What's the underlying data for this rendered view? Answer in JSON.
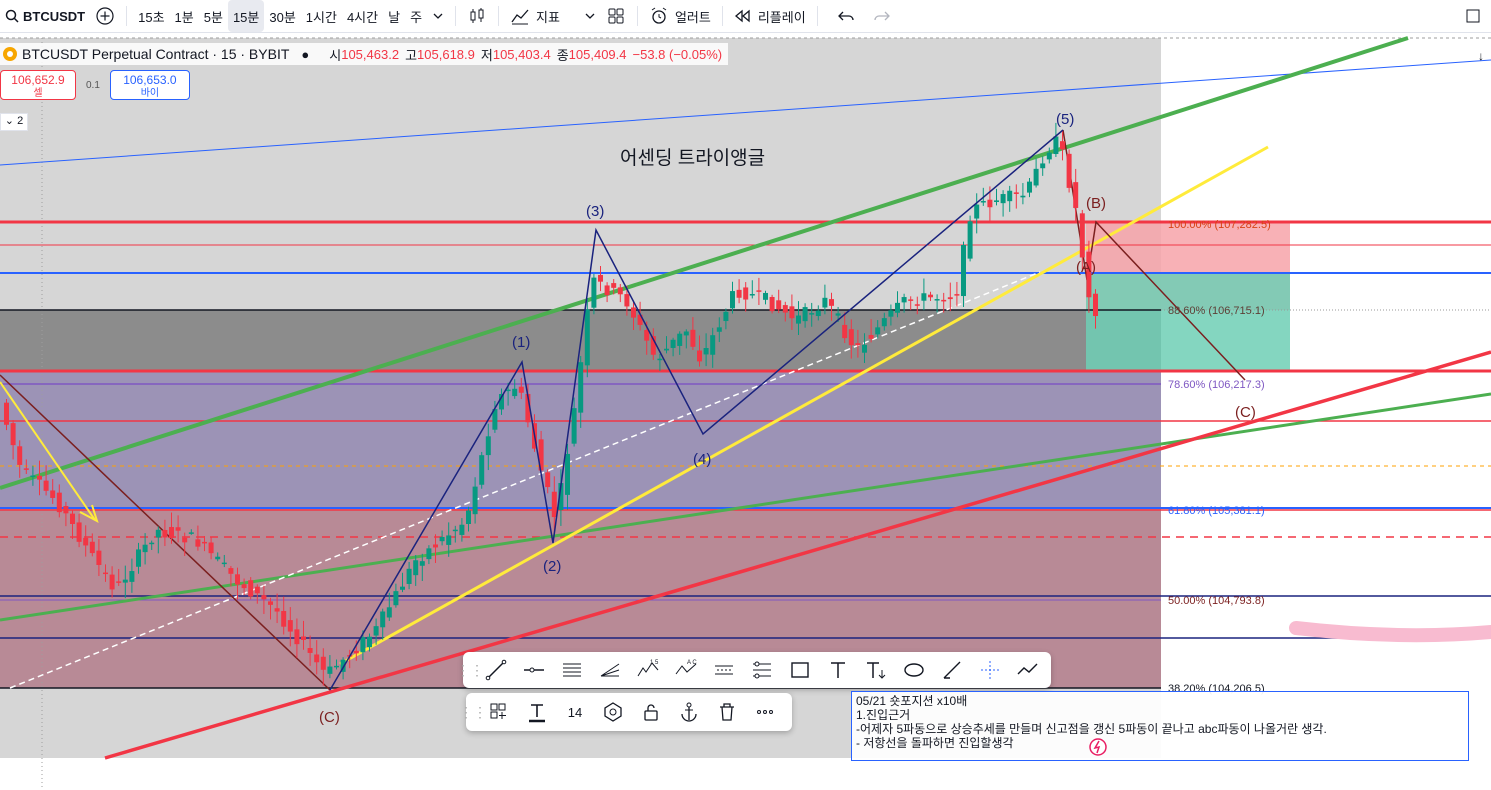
{
  "toolbar": {
    "symbol": "BTCUSDT",
    "intervals": [
      "15초",
      "1분",
      "5분",
      "15분",
      "30분",
      "1시간",
      "4시간",
      "날",
      "주"
    ],
    "active_interval": "15분",
    "indicators_label": "지표",
    "alert_label": "얼러트",
    "replay_label": "리플레이"
  },
  "legend": {
    "title": "BTCUSDT Perpetual Contract · 15 · BYBIT",
    "o_label": "시",
    "o": "105,463.2",
    "h_label": "고",
    "h": "105,618.9",
    "l_label": "저",
    "l": "105,403.4",
    "c_label": "종",
    "c": "105,409.4",
    "change": "−53.8 (−0.05%)"
  },
  "trade": {
    "sell_price": "106,652.9",
    "sell_label": "셀",
    "qty": "0.1",
    "buy_price": "106,653.0",
    "buy_label": "바이"
  },
  "collapse_label": "2",
  "chart": {
    "pattern_label": "어센딩 트라이앵글",
    "wave_labels": [
      "(1)",
      "(2)",
      "(3)",
      "(4)",
      "(5)",
      "(B)",
      "(C)",
      "(C)",
      "(A)"
    ],
    "fib_labels": [
      "100.00% (107,282.5)",
      "88.60% (106,715.1)",
      "78.60% (106,217.3)",
      "61.80% (105,381.1)",
      "50.00% (104,793.8)",
      "38.20% (104,206.5)"
    ],
    "colors": {
      "up": "#089981",
      "down": "#f23645",
      "green_line": "#4caf50",
      "yellow_line": "#ffeb3b",
      "wave_blue": "#1a237e",
      "red_line": "#f23645"
    }
  },
  "floatbar1": {
    "icons": [
      "trend-line-icon",
      "horizontal-ray-icon",
      "parallel-channel-icon",
      "pitchfork-icon",
      "elliott-impulse-icon",
      "elliott-correction-icon",
      "projection-icon",
      "long-short-icon",
      "rectangle-icon",
      "text-icon",
      "text-anchor-icon",
      "ellipse-icon",
      "brush-icon",
      "crosshair-icon",
      "path-icon"
    ]
  },
  "floatbar2": {
    "font_size": "14",
    "icons": [
      "template-icon",
      "text-color-icon",
      "font-size",
      "hexagon-icon",
      "lock-icon",
      "anchor-icon",
      "trash-icon",
      "more-icon"
    ]
  },
  "note": {
    "line1": "05/21 숏포지션 x10배",
    "line2": "1.진입근거",
    "line3": "-어제자 5파동으로 상승추세를 만들며 신고점을 갱신 5파동이 끝나고 abc파동이 나올거란 생각.",
    "line4": "- 저항선을 돌파하면 진입할생각"
  }
}
